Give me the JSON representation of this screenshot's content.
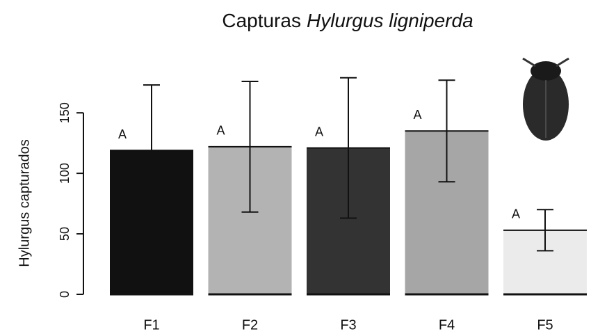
{
  "chart_data": {
    "type": "bar",
    "title": [
      "Capturas",
      "Hylurgus ligniperda"
    ],
    "ylabel": "Hylurgus capturados",
    "categories": [
      "F1",
      "F2",
      "F3",
      "F4",
      "F5"
    ],
    "values": [
      119,
      122,
      121,
      135,
      53
    ],
    "errors": [
      54,
      54,
      58,
      42,
      17
    ],
    "group_labels": [
      "A",
      "A",
      "A",
      "A",
      "A"
    ],
    "colors": [
      "#111111",
      "#b3b3b3",
      "#333333",
      "#a6a6a6",
      "#ebebeb"
    ],
    "ylim": [
      0,
      180
    ],
    "yticks": [
      0,
      50,
      100,
      150
    ]
  }
}
